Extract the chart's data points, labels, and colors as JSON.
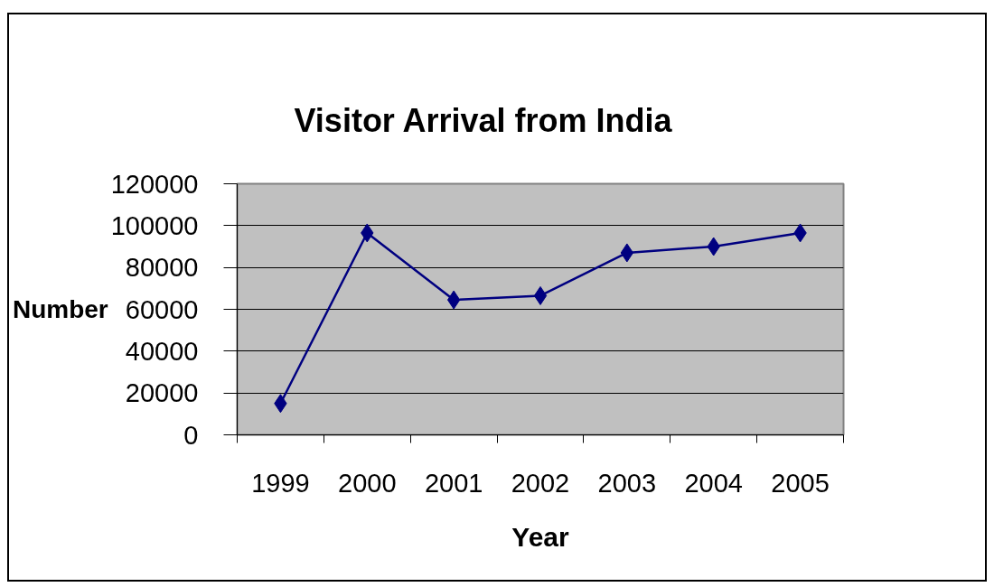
{
  "chart_data": {
    "type": "line",
    "title": "Visitor Arrival from India",
    "xlabel": "Year",
    "ylabel": "Number",
    "categories": [
      "1999",
      "2000",
      "2001",
      "2002",
      "2003",
      "2004",
      "2005"
    ],
    "series": [
      {
        "color": "#000080",
        "values": [
          15000,
          96500,
          64500,
          66500,
          87000,
          90000,
          96500
        ]
      }
    ],
    "ylim": [
      0,
      120000
    ],
    "yticks": [
      0,
      20000,
      40000,
      60000,
      80000,
      100000,
      120000
    ],
    "grid": "y",
    "marker": "diamond",
    "line_style": "solid"
  }
}
